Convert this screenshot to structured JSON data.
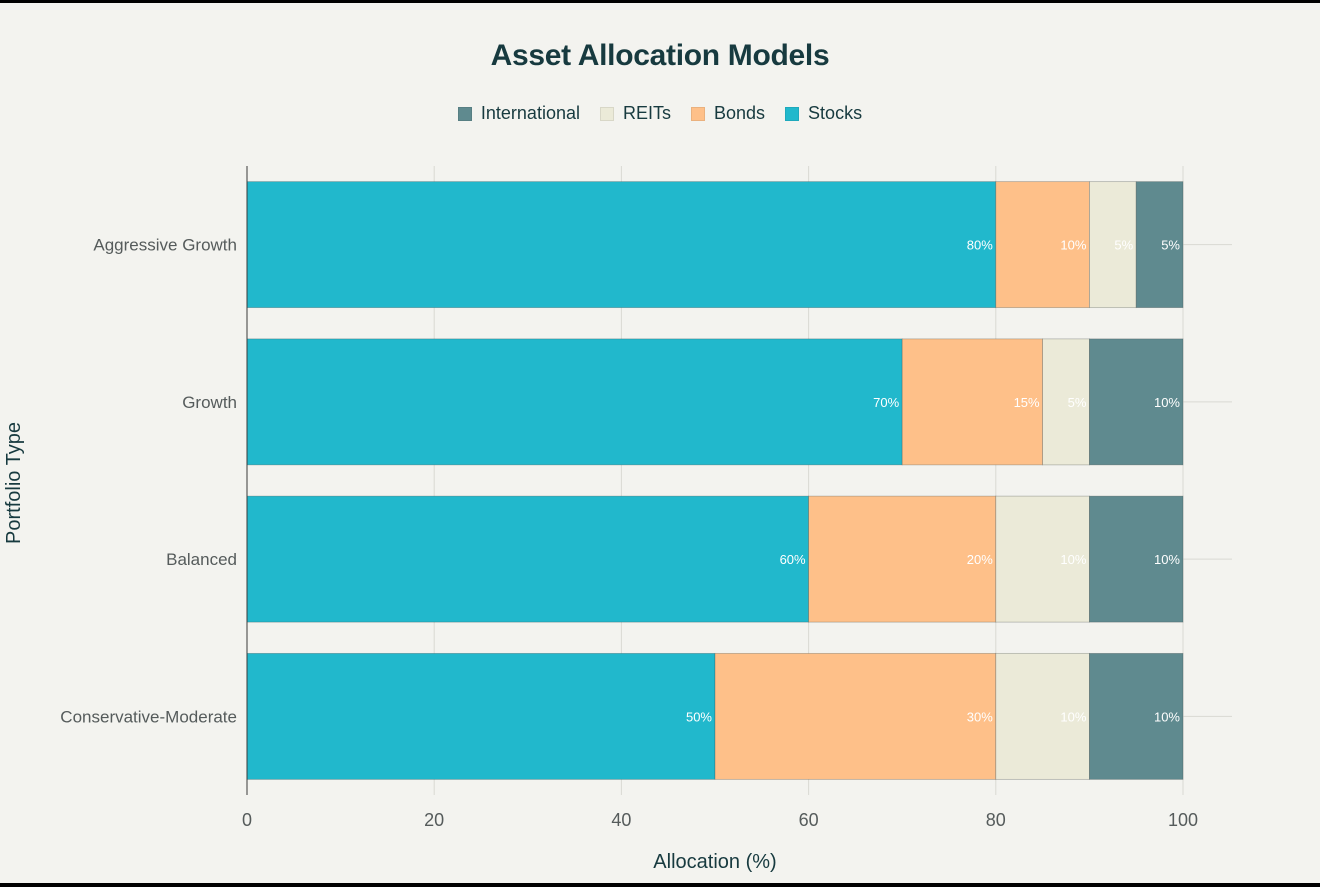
{
  "chart_data": {
    "type": "bar",
    "orientation": "horizontal",
    "stacked": true,
    "title": "Asset Allocation Models",
    "xlabel": "Allocation (%)",
    "ylabel": "Portfolio Type",
    "xlim": [
      0,
      100
    ],
    "xticks": [
      0,
      20,
      40,
      60,
      80,
      100
    ],
    "grid": true,
    "legend_position": "top-center",
    "legend_order": [
      "International",
      "REITs",
      "Bonds",
      "Stocks"
    ],
    "categories": [
      "Aggressive Growth",
      "Growth",
      "Balanced",
      "Conservative-Moderate"
    ],
    "series": [
      {
        "name": "Stocks",
        "color": "#21b8cc",
        "values": [
          80,
          70,
          60,
          50
        ],
        "labels": [
          "80%",
          "70%",
          "60%",
          "50%"
        ]
      },
      {
        "name": "Bonds",
        "color": "#fec089",
        "values": [
          10,
          15,
          20,
          30
        ],
        "labels": [
          "10%",
          "15%",
          "20%",
          "30%"
        ]
      },
      {
        "name": "REITs",
        "color": "#ebead8",
        "values": [
          5,
          5,
          10,
          10
        ],
        "labels": [
          "5%",
          "5%",
          "10%",
          "10%"
        ]
      },
      {
        "name": "International",
        "color": "#5f8a8f",
        "values": [
          5,
          10,
          10,
          10
        ],
        "labels": [
          "5%",
          "10%",
          "10%",
          "10%"
        ]
      }
    ]
  }
}
